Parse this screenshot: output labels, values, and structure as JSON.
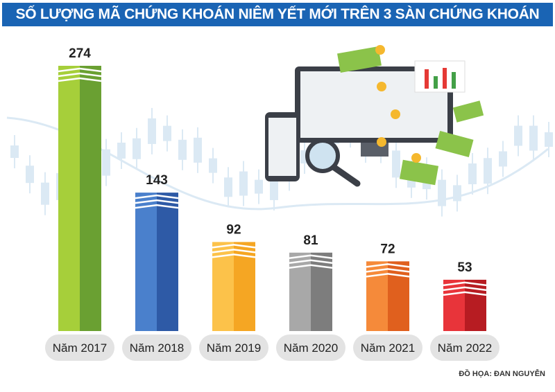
{
  "chart_data": {
    "type": "bar",
    "title": "SỐ LƯỢNG MÃ CHỨNG KHOÁN NIÊM YẾT MỚI TRÊN 3 SÀN CHỨNG KHOÁN",
    "categories": [
      "Năm 2017",
      "Năm 2018",
      "Năm 2019",
      "Năm 2020",
      "Năm 2021",
      "Năm 2022"
    ],
    "values": [
      274,
      143,
      92,
      81,
      72,
      53
    ],
    "colors": [
      [
        "#a6cf3a",
        "#6aa032"
      ],
      [
        "#4a80cc",
        "#2e5aa6"
      ],
      [
        "#fcc24a",
        "#f5a623"
      ],
      [
        "#a8a8a8",
        "#7d7d7d"
      ],
      [
        "#f58a3a",
        "#e0601e"
      ],
      [
        "#e8343a",
        "#b71c22"
      ]
    ],
    "ylim": [
      0,
      274
    ],
    "grid": false,
    "xlabel": "",
    "ylabel": ""
  },
  "credit": "ĐỒ HỌA: ĐAN NGUYỄN"
}
